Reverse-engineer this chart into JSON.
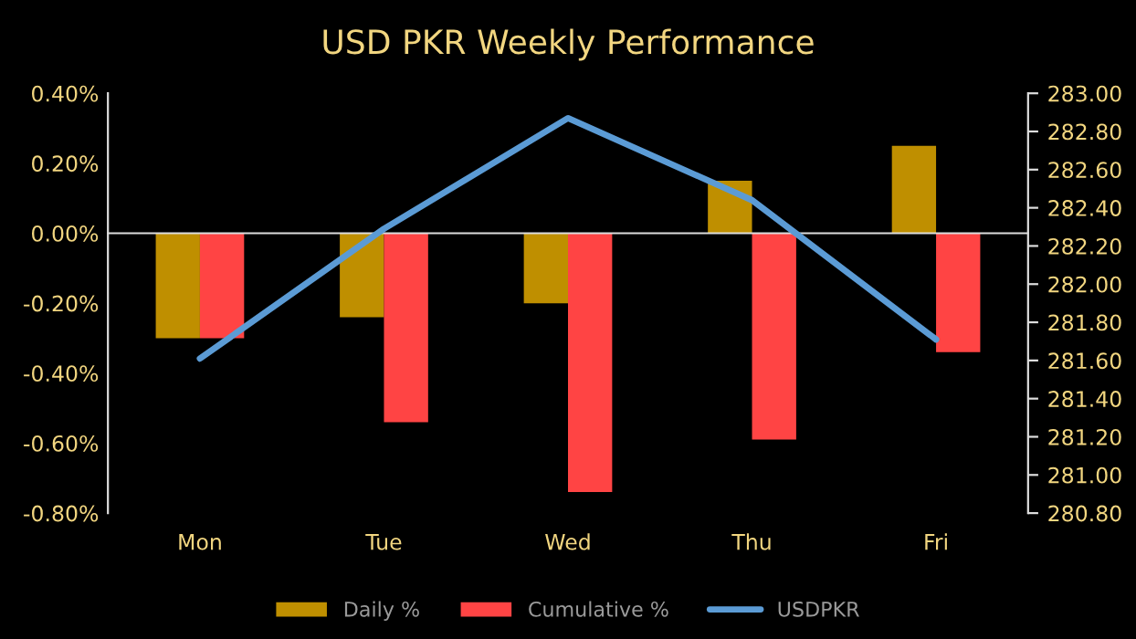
{
  "chart_data": {
    "type": "bar",
    "title": "USD PKR Weekly Performance",
    "categories": [
      "Mon",
      "Tue",
      "Wed",
      "Thu",
      "Fri"
    ],
    "series": [
      {
        "name": "Daily %",
        "color": "#bf8f00",
        "values": [
          -0.3,
          -0.24,
          -0.2,
          0.15,
          0.25
        ]
      },
      {
        "name": "Cumulative %",
        "color": "#ff4444",
        "values": [
          -0.3,
          -0.54,
          -0.74,
          -0.59,
          -0.34
        ]
      },
      {
        "name": "USDPKR",
        "type": "line",
        "axis": "y2",
        "color": "#5b9bd5",
        "values": [
          281.61,
          282.29,
          282.87,
          282.44,
          281.71
        ]
      }
    ],
    "ylim": [
      -0.8,
      0.4
    ],
    "yticks": [
      {
        "value": -0.8,
        "label": "-0.80%"
      },
      {
        "value": -0.6,
        "label": "-0.60%"
      },
      {
        "value": -0.4,
        "label": "-0.40%"
      },
      {
        "value": -0.2,
        "label": "-0.20%"
      },
      {
        "value": 0,
        "label": "0.00%"
      },
      {
        "value": 0.2,
        "label": "0.20%"
      },
      {
        "value": 0.4,
        "label": "0.40%"
      }
    ],
    "y2lim": [
      280.8,
      283.0
    ],
    "y2ticks": [
      {
        "value": 280.8,
        "label": "280.80"
      },
      {
        "value": 281.0,
        "label": "281.00"
      },
      {
        "value": 281.2,
        "label": "281.20"
      },
      {
        "value": 281.4,
        "label": "281.40"
      },
      {
        "value": 281.6,
        "label": "281.60"
      },
      {
        "value": 281.8,
        "label": "281.80"
      },
      {
        "value": 282.0,
        "label": "282.00"
      },
      {
        "value": 282.2,
        "label": "282.20"
      },
      {
        "value": 282.4,
        "label": "282.40"
      },
      {
        "value": 282.6,
        "label": "282.60"
      },
      {
        "value": 282.8,
        "label": "282.80"
      },
      {
        "value": 283.0,
        "label": "283.00"
      }
    ],
    "legend": "bottom",
    "marker": "none",
    "line_style": "solid"
  }
}
